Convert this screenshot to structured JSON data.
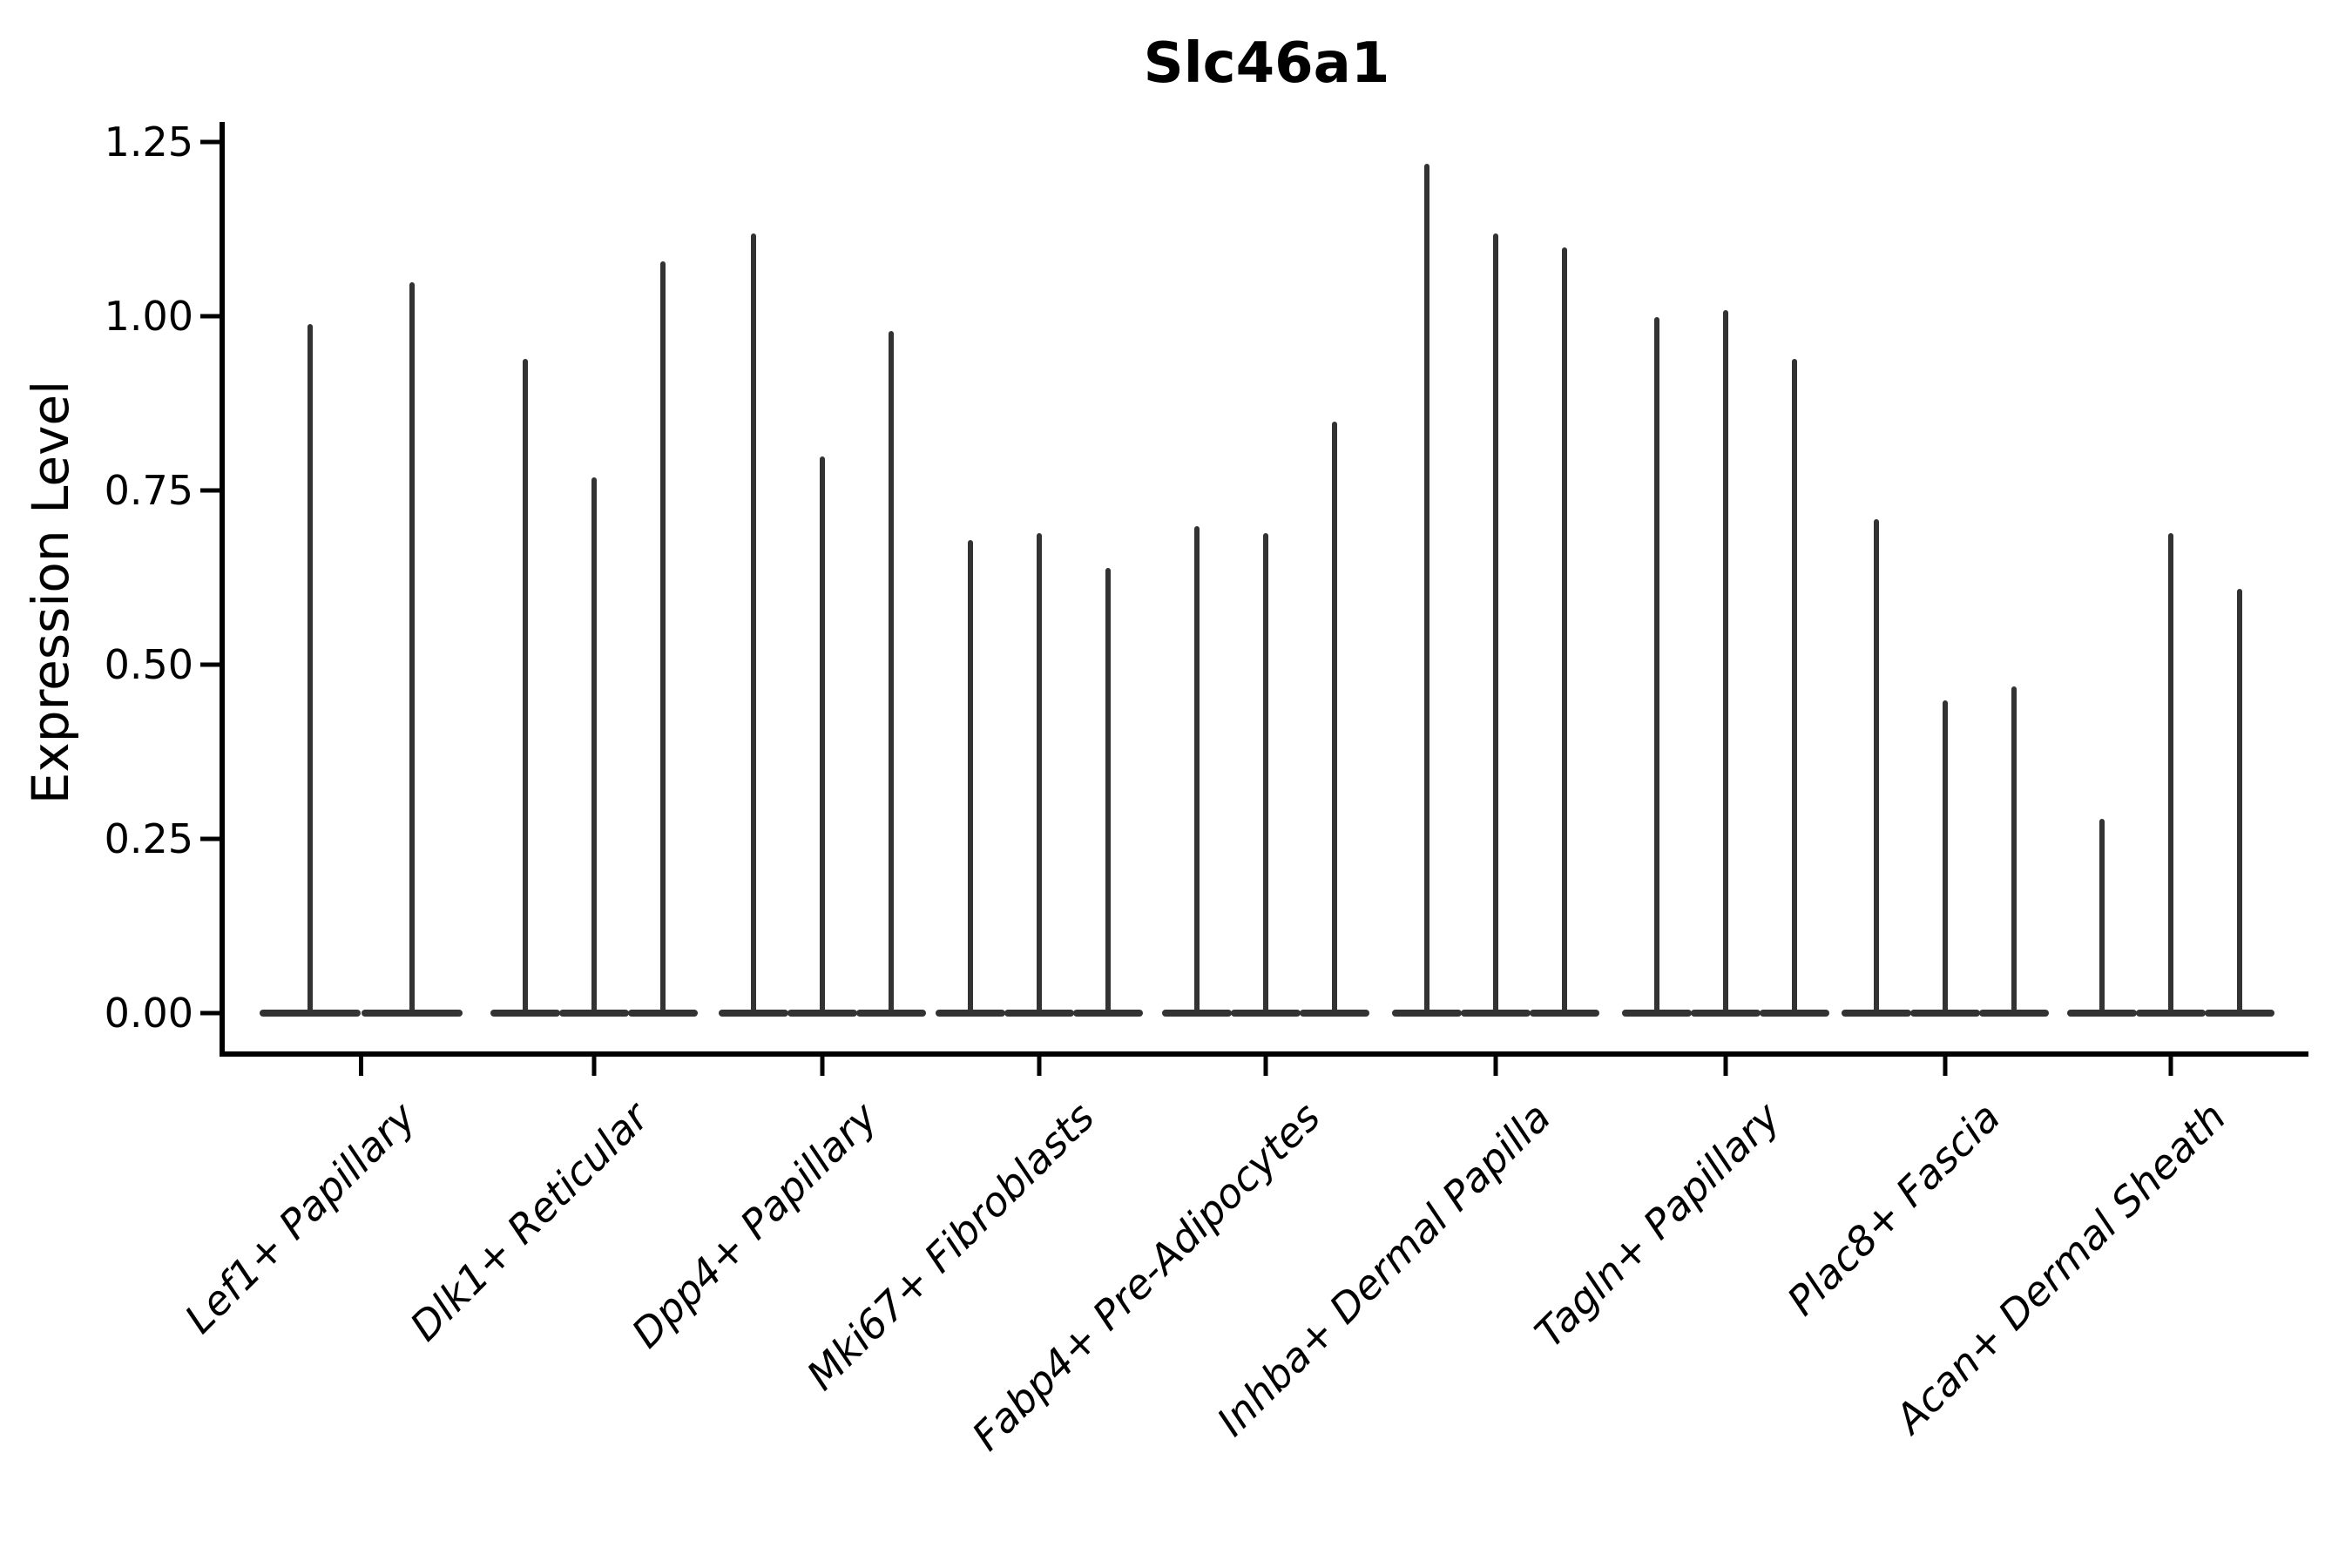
{
  "chart_data": {
    "type": "violin",
    "title": "Slc46a1",
    "ylabel": "Expression Level",
    "xlabel": "",
    "ylim": [
      -0.06,
      1.28
    ],
    "yticks": [
      "0.00",
      "0.25",
      "0.50",
      "0.75",
      "1.00",
      "1.25"
    ],
    "ytick_values": [
      0.0,
      0.25,
      0.5,
      0.75,
      1.0,
      1.25
    ],
    "grid": false,
    "legend": "none",
    "note": "Each category shows thin violin spikes rising from a flat dense base at 0; values below are the top (max) expression level of each violin spike, left to right within the group.",
    "groups": [
      {
        "label": "Lef1+ Papillary",
        "violin_spike_tops": [
          0.99,
          1.05
        ]
      },
      {
        "label": "Dlk1+ Reticular",
        "violin_spike_tops": [
          0.94,
          0.77,
          1.08
        ]
      },
      {
        "label": "Dpp4+ Papillary",
        "violin_spike_tops": [
          1.12,
          0.8,
          0.98
        ]
      },
      {
        "label": "Mki67+ Fibroblasts",
        "violin_spike_tops": [
          0.68,
          0.69,
          0.64
        ]
      },
      {
        "label": "Fabp4+ Pre-Adipocytes",
        "violin_spike_tops": [
          0.7,
          0.69,
          0.85
        ]
      },
      {
        "label": "Inhba+ Dermal Papilla",
        "violin_spike_tops": [
          1.22,
          1.12,
          1.1
        ]
      },
      {
        "label": "Tagln+ Papillary",
        "violin_spike_tops": [
          1.0,
          1.01,
          0.94
        ]
      },
      {
        "label": "Plac8+ Fascia",
        "violin_spike_tops": [
          0.71,
          0.45,
          0.47
        ]
      },
      {
        "label": "Acan+ Dermal Sheath",
        "violin_spike_tops": [
          0.28,
          0.69,
          0.61
        ]
      }
    ],
    "colors": {
      "violin": "#333333",
      "axis": "#000000",
      "text": "#000000",
      "background": "#ffffff"
    }
  }
}
